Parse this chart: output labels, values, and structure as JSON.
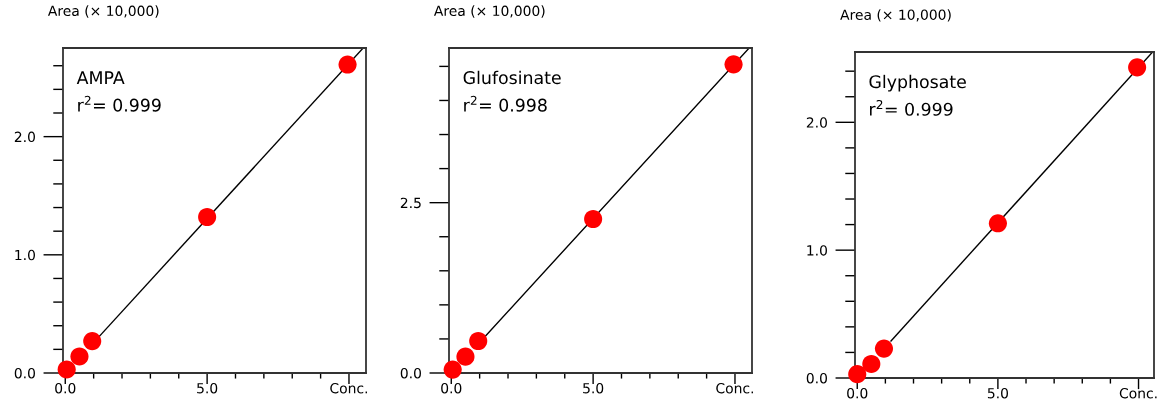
{
  "chart_data": [
    {
      "type": "scatter",
      "ylabel": "Area (× 10,000)",
      "annotations": [
        "AMPA",
        "r$^{2}$= 0.999"
      ],
      "marker": "circle",
      "grid": false,
      "xlim": [
        -0.08,
        10.6
      ],
      "ylim": [
        0,
        2.75
      ],
      "xticks": [
        {
          "value": 0,
          "label": "0.0"
        },
        {
          "value": 1,
          "label": null
        },
        {
          "value": 2,
          "label": null
        },
        {
          "value": 3,
          "label": null
        },
        {
          "value": 4,
          "label": null
        },
        {
          "value": 5,
          "label": "5.0"
        },
        {
          "value": 6,
          "label": null
        },
        {
          "value": 7,
          "label": null
        },
        {
          "value": 8,
          "label": null
        },
        {
          "value": 9,
          "label": null
        },
        {
          "value": 10,
          "label": "Conc."
        }
      ],
      "yticks": [
        {
          "value": 0,
          "label": "0.0"
        },
        {
          "value": 0.2,
          "label": null
        },
        {
          "value": 0.4,
          "label": null
        },
        {
          "value": 0.6,
          "label": null
        },
        {
          "value": 0.8,
          "label": null
        },
        {
          "value": 1,
          "label": "1.0"
        },
        {
          "value": 1.2,
          "label": null
        },
        {
          "value": 1.4,
          "label": null
        },
        {
          "value": 1.6,
          "label": null
        },
        {
          "value": 1.8,
          "label": null
        },
        {
          "value": 2,
          "label": "2.0"
        },
        {
          "value": 2.2,
          "label": null
        },
        {
          "value": 2.4,
          "label": null
        },
        {
          "value": 2.6,
          "label": null
        }
      ],
      "series": [
        {
          "type": "line",
          "color": "#000000",
          "line_style": "solid",
          "marker": "none",
          "x": [
            1.2,
            10.5
          ],
          "values": [
            0.31,
            2.75
          ]
        },
        {
          "color": "#ff0000",
          "x": [
            0.05,
            0.5,
            0.95,
            5,
            9.95
          ],
          "values": [
            0.03,
            0.14,
            0.27,
            1.32,
            2.61
          ]
        }
      ]
    },
    {
      "type": "scatter",
      "ylabel": "Area (× 10,000)",
      "annotations": [
        "Glufosinate",
        "r$^{2}$= 0.998"
      ],
      "marker": "circle",
      "grid": false,
      "xlim": [
        -0.08,
        10.6
      ],
      "ylim": [
        0,
        4.77
      ],
      "xticks": [
        {
          "value": 0,
          "label": "0.0"
        },
        {
          "value": 1,
          "label": null
        },
        {
          "value": 2,
          "label": null
        },
        {
          "value": 3,
          "label": null
        },
        {
          "value": 4,
          "label": null
        },
        {
          "value": 5,
          "label": "5.0"
        },
        {
          "value": 6,
          "label": null
        },
        {
          "value": 7,
          "label": null
        },
        {
          "value": 8,
          "label": null
        },
        {
          "value": 9,
          "label": null
        },
        {
          "value": 10,
          "label": "Conc."
        }
      ],
      "yticks": [
        {
          "value": 0,
          "label": "0.0"
        },
        {
          "value": 0.5,
          "label": null
        },
        {
          "value": 1,
          "label": null
        },
        {
          "value": 1.5,
          "label": null
        },
        {
          "value": 2,
          "label": null
        },
        {
          "value": 2.5,
          "label": "2.5"
        },
        {
          "value": 3,
          "label": null
        },
        {
          "value": 3.5,
          "label": null
        },
        {
          "value": 4,
          "label": null
        },
        {
          "value": 4.5,
          "label": null
        }
      ],
      "series": [
        {
          "type": "line",
          "color": "#000000",
          "line_style": "solid",
          "marker": "none",
          "x": [
            1.2,
            10.5
          ],
          "values": [
            0.54,
            4.77
          ]
        },
        {
          "color": "#ff0000",
          "x": [
            0.05,
            0.5,
            0.95,
            5,
            9.95
          ],
          "values": [
            0.05,
            0.24,
            0.47,
            2.26,
            4.53
          ]
        }
      ]
    },
    {
      "type": "scatter",
      "ylabel": "Area (× 10,000)",
      "annotations": [
        "Glyphosate",
        "r$^{2}$= 0.999"
      ],
      "marker": "circle",
      "grid": false,
      "xlim": [
        -0.08,
        10.55
      ],
      "ylim": [
        0,
        2.55
      ],
      "xticks": [
        {
          "value": 0,
          "label": "0.0"
        },
        {
          "value": 1,
          "label": null
        },
        {
          "value": 2,
          "label": null
        },
        {
          "value": 3,
          "label": null
        },
        {
          "value": 4,
          "label": null
        },
        {
          "value": 5,
          "label": "5.0"
        },
        {
          "value": 6,
          "label": null
        },
        {
          "value": 7,
          "label": null
        },
        {
          "value": 8,
          "label": null
        },
        {
          "value": 9,
          "label": null
        },
        {
          "value": 10,
          "label": "Conc."
        }
      ],
      "yticks": [
        {
          "value": 0,
          "label": "0.0"
        },
        {
          "value": 0.2,
          "label": null
        },
        {
          "value": 0.4,
          "label": null
        },
        {
          "value": 0.6,
          "label": null
        },
        {
          "value": 0.8,
          "label": null
        },
        {
          "value": 1,
          "label": "1.0"
        },
        {
          "value": 1.2,
          "label": null
        },
        {
          "value": 1.4,
          "label": null
        },
        {
          "value": 1.6,
          "label": null
        },
        {
          "value": 1.8,
          "label": null
        },
        {
          "value": 2,
          "label": "2.0"
        },
        {
          "value": 2.2,
          "label": null
        },
        {
          "value": 2.4,
          "label": null
        }
      ],
      "series": [
        {
          "type": "line",
          "color": "#000000",
          "line_style": "solid",
          "marker": "none",
          "x": [
            1.2,
            10.5
          ],
          "values": [
            0.29,
            2.55
          ]
        },
        {
          "color": "#ff0000",
          "x": [
            0.0,
            0.5,
            0.95,
            5,
            9.95
          ],
          "values": [
            0.03,
            0.11,
            0.23,
            1.21,
            2.43
          ]
        }
      ]
    }
  ]
}
